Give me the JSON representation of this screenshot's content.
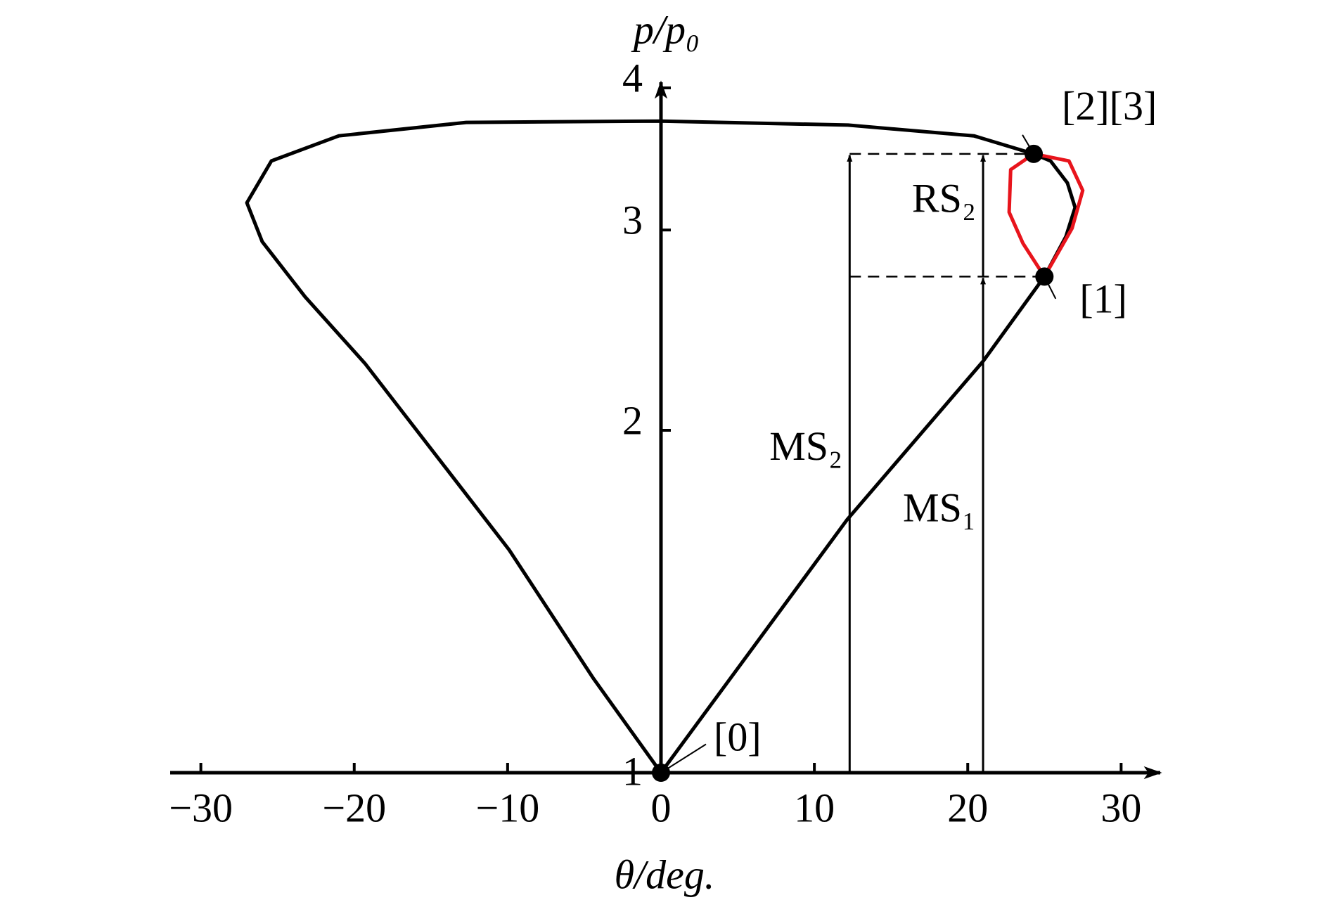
{
  "chart_data": {
    "type": "line",
    "xlabel": "θ/deg.",
    "ylabel": "p/p₀",
    "xlim": [
      -32,
      32
    ],
    "ylim": [
      1,
      4
    ],
    "log_y": true,
    "xticks": [
      {
        "value": -30,
        "label": "−30"
      },
      {
        "value": -20,
        "label": "−20"
      },
      {
        "value": -10,
        "label": "−10"
      },
      0,
      10,
      20,
      30
    ],
    "yticks": [
      1,
      2,
      3,
      4
    ],
    "series": [
      {
        "color": "#000000",
        "x": [
          0,
          12.15,
          21.0,
          25.0,
          26.4,
          27.0,
          26.5,
          25.4,
          24.3,
          20.4,
          12.2,
          0,
          -12.7,
          -21.0,
          -25.4,
          -27.0,
          -26.0,
          -23.2,
          -19.3,
          -9.9,
          -4.4,
          0
        ],
        "y": [
          1,
          1.67,
          2.3,
          2.73,
          2.96,
          3.14,
          3.3,
          3.45,
          3.5,
          3.63,
          3.71,
          3.74,
          3.73,
          3.63,
          3.45,
          3.17,
          2.93,
          2.62,
          2.29,
          1.57,
          1.21,
          1
        ]
      },
      {
        "color": "#e8141c",
        "x": [
          25.0,
          23.6,
          22.7,
          22.8,
          24.3,
          26.6,
          27.5,
          26.8,
          25.0
        ],
        "y": [
          2.73,
          2.92,
          3.11,
          3.39,
          3.5,
          3.45,
          3.25,
          3.01,
          2.73
        ]
      }
    ],
    "points": [
      {
        "label": "[0]",
        "x": 0,
        "y": 1
      },
      {
        "label": "[1]",
        "x": 25.0,
        "y": 2.73
      },
      {
        "label": "[2][3]",
        "x": 24.3,
        "y": 3.5
      }
    ],
    "arrows": [
      {
        "label": "MS₂",
        "x": 12.3,
        "y0": 1,
        "y1": 3.5
      },
      {
        "label": "MS₁",
        "x": 21.0,
        "y0": 1,
        "y1": 2.73
      },
      {
        "label": "RS₂",
        "x": 21.0,
        "y0": 2.73,
        "y1": 3.5
      }
    ],
    "guides": [
      {
        "x0": 12.3,
        "x1": 24.3,
        "y": 3.5
      },
      {
        "x0": 12.3,
        "x1": 25.0,
        "y": 2.73
      }
    ]
  }
}
